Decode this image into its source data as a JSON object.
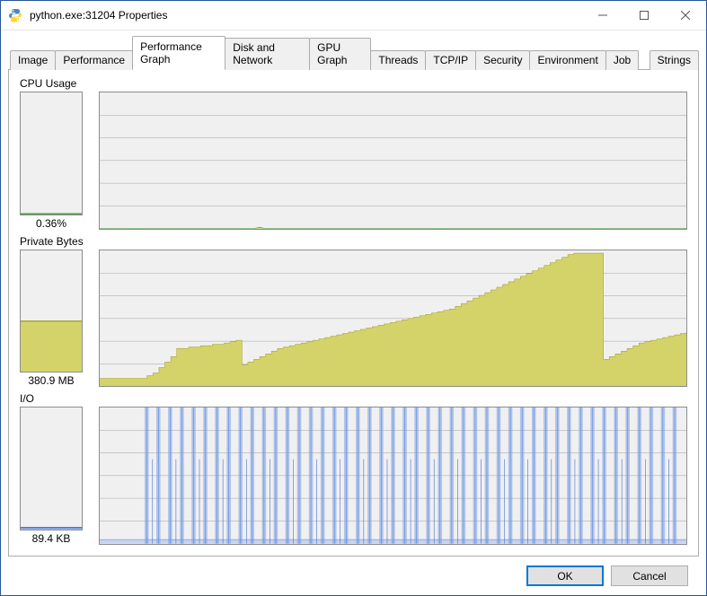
{
  "window": {
    "title": "python.exe:31204 Properties"
  },
  "tabs": [
    {
      "label": "Image"
    },
    {
      "label": "Performance"
    },
    {
      "label": "Performance Graph"
    },
    {
      "label": "Disk and Network"
    },
    {
      "label": "GPU Graph"
    },
    {
      "label": "Threads"
    },
    {
      "label": "TCP/IP"
    },
    {
      "label": "Security"
    },
    {
      "label": "Environment"
    },
    {
      "label": "Job"
    },
    {
      "label": "Strings"
    }
  ],
  "active_tab_index": 2,
  "buttons": {
    "ok": "OK",
    "cancel": "Cancel"
  },
  "sections": {
    "cpu": {
      "label": "CPU Usage",
      "value_text": "0.36%",
      "grid_rows": 6,
      "big": {
        "type": "area",
        "ylim": [
          0,
          100
        ],
        "line_color": "#008000",
        "fill_color": "#9acd32",
        "background_color": "#f0f0f0",
        "grid_color": "#6e6e6e",
        "values": [
          0,
          0,
          0,
          0,
          0,
          0,
          0,
          0,
          0,
          0,
          0,
          0,
          0,
          0,
          0,
          0,
          0,
          0,
          0,
          0,
          0,
          0,
          0,
          0,
          0,
          0,
          0,
          1,
          0,
          0,
          0,
          0,
          0,
          0,
          0,
          0,
          0,
          0,
          0,
          0,
          0,
          0,
          0,
          0,
          0,
          0,
          0,
          0,
          0,
          0,
          0,
          0,
          0,
          0,
          0,
          0,
          0,
          0,
          0,
          0,
          0,
          0,
          0,
          0,
          0,
          0,
          0,
          0,
          0,
          0,
          0,
          0,
          0,
          0,
          0,
          0,
          0,
          0,
          0,
          0,
          0,
          0,
          0,
          0,
          0,
          0,
          0,
          0,
          0,
          0,
          0,
          0,
          0,
          0,
          0,
          0,
          0,
          0,
          0,
          0
        ]
      },
      "mini": {
        "fill_color": "#9acd32",
        "line_color": "#008000",
        "value_pct": 0.4
      }
    },
    "priv": {
      "label": "Private Bytes",
      "value_text": "380.9 MB",
      "grid_rows": 6,
      "big": {
        "type": "area-step",
        "ylim": [
          0,
          100
        ],
        "line_color": "#8a8a00",
        "fill_color": "#cfcf5aE0",
        "fill_color_solid": "#d3d36a",
        "background_color": "#f0f0f0",
        "grid_color": "#6e6e6e",
        "values": [
          6,
          6,
          6,
          6,
          6,
          6,
          6,
          6,
          8,
          10,
          14,
          18,
          22,
          28,
          28,
          29,
          29,
          30,
          30,
          31,
          31,
          32,
          33,
          34,
          16,
          18,
          20,
          22,
          24,
          26,
          28,
          29,
          30,
          31,
          32,
          33,
          34,
          35,
          36,
          37,
          38,
          39,
          40,
          41,
          42,
          43,
          44,
          45,
          46,
          47,
          48,
          49,
          50,
          51,
          52,
          53,
          54,
          55,
          56,
          57,
          59,
          61,
          63,
          65,
          67,
          69,
          71,
          73,
          75,
          77,
          79,
          81,
          83,
          85,
          87,
          89,
          91,
          93,
          95,
          97,
          98,
          98,
          98,
          98,
          98,
          20,
          22,
          24,
          26,
          28,
          30,
          32,
          33,
          34,
          35,
          36,
          37,
          38,
          39,
          40
        ]
      },
      "mini": {
        "fill_color": "#d3d36a",
        "line_color": "#8a8a00",
        "value_pct": 42
      }
    },
    "io": {
      "label": "I/O",
      "value_text": "89.4  KB",
      "grid_rows": 6,
      "big": {
        "type": "spikes",
        "ylim": [
          0,
          100
        ],
        "line_color": "#3a63c8",
        "inner_color": "#7aa0e8",
        "background_color": "#f0f0f0",
        "grid_color": "#6e6e6e",
        "baseline": 3,
        "spikes": [
          {
            "x": 8,
            "h": 100
          },
          {
            "x": 9,
            "h": 62
          },
          {
            "x": 10,
            "h": 100
          },
          {
            "x": 12,
            "h": 100
          },
          {
            "x": 13,
            "h": 62
          },
          {
            "x": 14,
            "h": 100
          },
          {
            "x": 16,
            "h": 100
          },
          {
            "x": 17,
            "h": 62
          },
          {
            "x": 18,
            "h": 100
          },
          {
            "x": 20,
            "h": 100
          },
          {
            "x": 21,
            "h": 62
          },
          {
            "x": 22,
            "h": 100
          },
          {
            "x": 24,
            "h": 100
          },
          {
            "x": 25,
            "h": 62
          },
          {
            "x": 26,
            "h": 100
          },
          {
            "x": 28,
            "h": 100
          },
          {
            "x": 29,
            "h": 62
          },
          {
            "x": 30,
            "h": 100
          },
          {
            "x": 32,
            "h": 100
          },
          {
            "x": 33,
            "h": 62
          },
          {
            "x": 34,
            "h": 100
          },
          {
            "x": 36,
            "h": 100
          },
          {
            "x": 37,
            "h": 62
          },
          {
            "x": 38,
            "h": 100
          },
          {
            "x": 40,
            "h": 100
          },
          {
            "x": 41,
            "h": 62
          },
          {
            "x": 42,
            "h": 100
          },
          {
            "x": 44,
            "h": 100
          },
          {
            "x": 45,
            "h": 62
          },
          {
            "x": 46,
            "h": 100
          },
          {
            "x": 48,
            "h": 100
          },
          {
            "x": 49,
            "h": 62
          },
          {
            "x": 50,
            "h": 100
          },
          {
            "x": 52,
            "h": 100
          },
          {
            "x": 53,
            "h": 62
          },
          {
            "x": 54,
            "h": 100
          },
          {
            "x": 56,
            "h": 100
          },
          {
            "x": 57,
            "h": 62
          },
          {
            "x": 58,
            "h": 100
          },
          {
            "x": 60,
            "h": 100
          },
          {
            "x": 61,
            "h": 62
          },
          {
            "x": 62,
            "h": 100
          },
          {
            "x": 64,
            "h": 100
          },
          {
            "x": 65,
            "h": 62
          },
          {
            "x": 66,
            "h": 100
          },
          {
            "x": 68,
            "h": 100
          },
          {
            "x": 69,
            "h": 62
          },
          {
            "x": 70,
            "h": 100
          },
          {
            "x": 72,
            "h": 100
          },
          {
            "x": 73,
            "h": 62
          },
          {
            "x": 74,
            "h": 100
          },
          {
            "x": 76,
            "h": 100
          },
          {
            "x": 77,
            "h": 62
          },
          {
            "x": 78,
            "h": 100
          },
          {
            "x": 80,
            "h": 100
          },
          {
            "x": 81,
            "h": 62
          },
          {
            "x": 82,
            "h": 100
          },
          {
            "x": 84,
            "h": 100
          },
          {
            "x": 85,
            "h": 62
          },
          {
            "x": 86,
            "h": 100
          },
          {
            "x": 88,
            "h": 100
          },
          {
            "x": 89,
            "h": 62
          },
          {
            "x": 90,
            "h": 100
          },
          {
            "x": 92,
            "h": 100
          },
          {
            "x": 93,
            "h": 62
          },
          {
            "x": 94,
            "h": 100
          },
          {
            "x": 96,
            "h": 100
          },
          {
            "x": 97,
            "h": 62
          },
          {
            "x": 98,
            "h": 100
          }
        ]
      },
      "mini": {
        "fill_color": "#7aa0e8",
        "line_color": "#3a63c8",
        "value_pct": 1.5
      }
    }
  },
  "colors": {
    "window_border": "#2b5797",
    "tab_border": "#acacac",
    "graph_border": "#8c8c8c",
    "background": "#ffffff",
    "graph_bg": "#f0f0f0",
    "grid": "#6e6e6e"
  },
  "icon_colors": {
    "top": "#4b8bbe",
    "bottom": "#ffd43b"
  }
}
